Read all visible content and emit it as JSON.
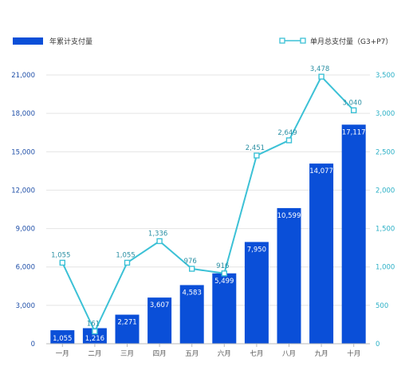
{
  "chart_data": {
    "type": "bar+line",
    "categories": [
      "一月",
      "二月",
      "三月",
      "四月",
      "五月",
      "六月",
      "七月",
      "八月",
      "九月",
      "十月"
    ],
    "series": [
      {
        "name": "年累计支付量",
        "type": "bar",
        "axis": "left",
        "color": "#0a4fd8",
        "values": [
          1055,
          1216,
          2271,
          3607,
          4583,
          5499,
          7950,
          10599,
          14077,
          17117
        ],
        "labels": [
          "1,055",
          "1,216",
          "2,271",
          "3,607",
          "4,583",
          "5,499",
          "7,950",
          "10,599",
          "14,077",
          "17,117"
        ]
      },
      {
        "name": "单月总支付量（G3+P7）",
        "type": "line",
        "axis": "right",
        "color": "#3cc1d6",
        "values": [
          1055,
          161,
          1055,
          1336,
          976,
          916,
          2451,
          2649,
          3478,
          3040
        ],
        "labels": [
          "1,055",
          "161",
          "1,055",
          "1,336",
          "976",
          "916",
          "2,451",
          "2,649",
          "3,478",
          "3,040"
        ]
      }
    ],
    "y_left": {
      "min": 0,
      "max": 21000,
      "step": 3000,
      "ticks": [
        "0",
        "3,000",
        "6,000",
        "9,000",
        "12,000",
        "15,000",
        "18,000",
        "21,000"
      ]
    },
    "y_right": {
      "min": 0,
      "max": 3500,
      "step": 500,
      "ticks": [
        "0",
        "500",
        "1,000",
        "1,500",
        "2,000",
        "2,500",
        "3,000",
        "3,500"
      ]
    },
    "grid": true,
    "legend_position": "top"
  }
}
